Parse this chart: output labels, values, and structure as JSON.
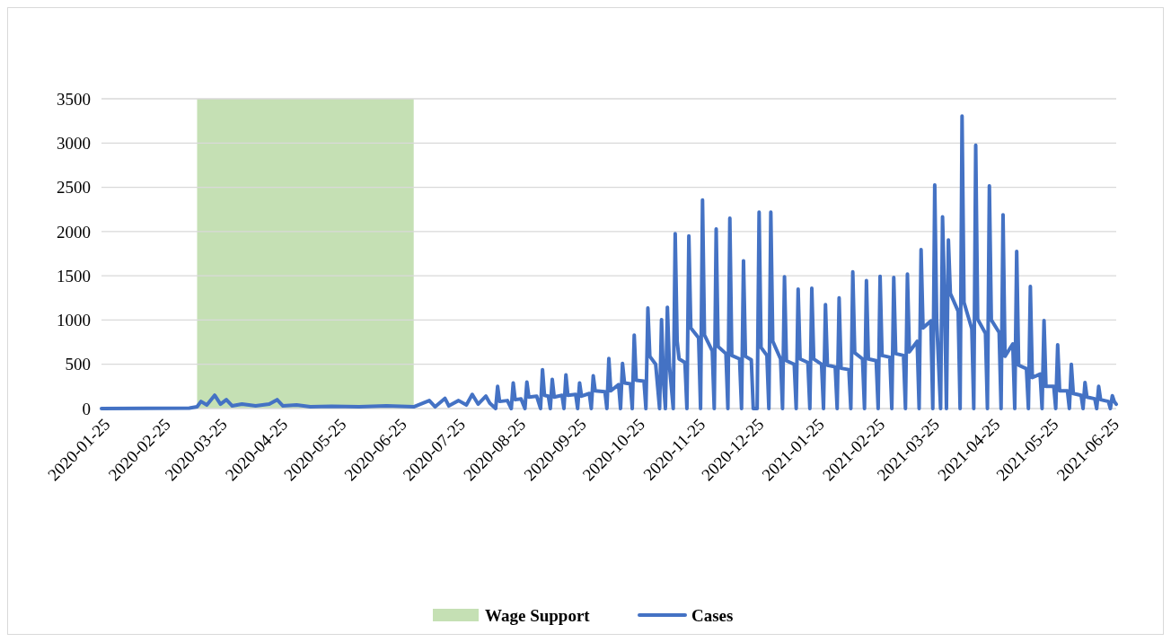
{
  "chart_data": {
    "type": "line",
    "xlim": [
      "2020-01-25",
      "2021-06-28"
    ],
    "xticks": [
      "2020-01-25",
      "2020-02-25",
      "2020-03-25",
      "2020-04-25",
      "2020-05-25",
      "2020-06-25",
      "2020-07-25",
      "2020-08-25",
      "2020-09-25",
      "2020-10-25",
      "2020-11-25",
      "2020-12-25",
      "2021-01-25",
      "2021-02-25",
      "2021-03-25",
      "2021-04-25",
      "2021-05-25",
      "2021-06-25"
    ],
    "ylim": [
      0,
      3500
    ],
    "yticks": [
      0,
      500,
      1000,
      1500,
      2000,
      2500,
      3000,
      3500
    ],
    "grid": "y",
    "legend": "bottom",
    "bands": [
      {
        "axis": "x",
        "from": "2020-03-14",
        "to": "2020-07-03",
        "label": "Wage Support",
        "color": "#c5e0b4"
      }
    ],
    "x": [
      "2020-01-25",
      "2020-03-10",
      "2020-03-14",
      "2020-03-16",
      "2020-03-19",
      "2020-03-23",
      "2020-03-26",
      "2020-03-29",
      "2020-04-01",
      "2020-04-06",
      "2020-04-13",
      "2020-04-20",
      "2020-04-24",
      "2020-04-27",
      "2020-05-04",
      "2020-05-11",
      "2020-05-22",
      "2020-06-05",
      "2020-06-19",
      "2020-07-03",
      "2020-07-11",
      "2020-07-14",
      "2020-07-19",
      "2020-07-21",
      "2020-07-26",
      "2020-07-30",
      "2020-08-02",
      "2020-08-05",
      "2020-08-09",
      "2020-08-11",
      "2020-08-14",
      "2020-08-15",
      "2020-08-16",
      "2020-08-20",
      "2020-08-22",
      "2020-08-23",
      "2020-08-24",
      "2020-08-27",
      "2020-08-29",
      "2020-08-30",
      "2020-08-31",
      "2020-09-04",
      "2020-09-06",
      "2020-09-07",
      "2020-09-08",
      "2020-09-10",
      "2020-09-11",
      "2020-09-12",
      "2020-09-13",
      "2020-09-17",
      "2020-09-18",
      "2020-09-19",
      "2020-09-20",
      "2020-09-24",
      "2020-09-25",
      "2020-09-26",
      "2020-09-27",
      "2020-10-01",
      "2020-10-02",
      "2020-10-03",
      "2020-10-04",
      "2020-10-09",
      "2020-10-10",
      "2020-10-11",
      "2020-10-12",
      "2020-10-16",
      "2020-10-17",
      "2020-10-18",
      "2020-10-19",
      "2020-10-22",
      "2020-10-23",
      "2020-10-24",
      "2020-10-25",
      "2020-10-29",
      "2020-10-30",
      "2020-10-31",
      "2020-11-01",
      "2020-11-04",
      "2020-11-06",
      "2020-11-07",
      "2020-11-08",
      "2020-11-09",
      "2020-11-10",
      "2020-11-11",
      "2020-11-13",
      "2020-11-14",
      "2020-11-15",
      "2020-11-16",
      "2020-11-19",
      "2020-11-20",
      "2020-11-21",
      "2020-11-22",
      "2020-11-26",
      "2020-11-27",
      "2020-11-28",
      "2020-11-29",
      "2020-12-03",
      "2020-12-04",
      "2020-12-05",
      "2020-12-06",
      "2020-12-10",
      "2020-12-11",
      "2020-12-12",
      "2020-12-13",
      "2020-12-17",
      "2020-12-18",
      "2020-12-19",
      "2020-12-20",
      "2020-12-23",
      "2020-12-24",
      "2020-12-25",
      "2020-12-26",
      "2020-12-27",
      "2020-12-28",
      "2020-12-31",
      "2021-01-01",
      "2021-01-02",
      "2021-01-03",
      "2021-01-07",
      "2021-01-08",
      "2021-01-09",
      "2021-01-10",
      "2021-01-14",
      "2021-01-15",
      "2021-01-16",
      "2021-01-17",
      "2021-01-21",
      "2021-01-22",
      "2021-01-23",
      "2021-01-24",
      "2021-01-28",
      "2021-01-29",
      "2021-01-30",
      "2021-01-31",
      "2021-02-04",
      "2021-02-05",
      "2021-02-06",
      "2021-02-07",
      "2021-02-11",
      "2021-02-12",
      "2021-02-13",
      "2021-02-14",
      "2021-02-18",
      "2021-02-19",
      "2021-02-20",
      "2021-02-21",
      "2021-02-25",
      "2021-02-26",
      "2021-02-27",
      "2021-02-28",
      "2021-03-04",
      "2021-03-05",
      "2021-03-06",
      "2021-03-07",
      "2021-03-11",
      "2021-03-12",
      "2021-03-13",
      "2021-03-14",
      "2021-03-18",
      "2021-03-19",
      "2021-03-20",
      "2021-03-21",
      "2021-03-25",
      "2021-03-26",
      "2021-03-27",
      "2021-03-28",
      "2021-03-30",
      "2021-03-31",
      "2021-04-01",
      "2021-04-02",
      "2021-04-03",
      "2021-04-04",
      "2021-04-08",
      "2021-04-09",
      "2021-04-10",
      "2021-04-11",
      "2021-04-15",
      "2021-04-16",
      "2021-04-17",
      "2021-04-18",
      "2021-04-22",
      "2021-04-23",
      "2021-04-24",
      "2021-04-25",
      "2021-04-29",
      "2021-04-30",
      "2021-05-01",
      "2021-05-02",
      "2021-05-06",
      "2021-05-07",
      "2021-05-08",
      "2021-05-09",
      "2021-05-13",
      "2021-05-14",
      "2021-05-15",
      "2021-05-16",
      "2021-05-20",
      "2021-05-21",
      "2021-05-22",
      "2021-05-23",
      "2021-05-27",
      "2021-05-28",
      "2021-05-29",
      "2021-05-30",
      "2021-06-03",
      "2021-06-04",
      "2021-06-05",
      "2021-06-06",
      "2021-06-10",
      "2021-06-11",
      "2021-06-12",
      "2021-06-13",
      "2021-06-17",
      "2021-06-18",
      "2021-06-19",
      "2021-06-20",
      "2021-06-24",
      "2021-06-25",
      "2021-06-26",
      "2021-06-27",
      "2021-06-28"
    ],
    "series": [
      {
        "name": "Cases",
        "color": "#4472c4",
        "values": [
          0,
          5,
          20,
          80,
          40,
          150,
          50,
          100,
          30,
          50,
          30,
          50,
          100,
          30,
          40,
          20,
          25,
          20,
          30,
          20,
          90,
          20,
          115,
          30,
          90,
          40,
          160,
          50,
          140,
          60,
          0,
          250,
          80,
          90,
          0,
          290,
          100,
          110,
          0,
          300,
          130,
          140,
          0,
          440,
          150,
          140,
          0,
          330,
          130,
          150,
          0,
          380,
          150,
          160,
          0,
          290,
          140,
          170,
          0,
          370,
          200,
          190,
          0,
          565,
          200,
          270,
          0,
          510,
          290,
          280,
          0,
          830,
          320,
          310,
          0,
          1135,
          590,
          500,
          0,
          1005,
          300,
          0,
          1145,
          500,
          0,
          1975,
          760,
          560,
          520,
          0,
          1950,
          910,
          800,
          0,
          2355,
          830,
          650,
          0,
          2030,
          700,
          620,
          0,
          2150,
          600,
          560,
          0,
          1670,
          590,
          550,
          0,
          0,
          0,
          2220,
          690,
          600,
          0,
          2220,
          760,
          560,
          0,
          1490,
          540,
          500,
          0,
          1350,
          560,
          520,
          0,
          1360,
          560,
          500,
          0,
          1175,
          490,
          470,
          0,
          1250,
          455,
          440,
          0,
          1545,
          630,
          560,
          0,
          1445,
          560,
          540,
          0,
          1495,
          600,
          580,
          0,
          1480,
          620,
          600,
          0,
          1520,
          640,
          760,
          0,
          1795,
          910,
          990,
          0,
          2525,
          990,
          0,
          2165,
          1300,
          0,
          1905,
          1300,
          1100,
          0,
          3305,
          1200,
          900,
          0,
          2975,
          1010,
          850,
          0,
          2515,
          1000,
          860,
          0,
          2190,
          590,
          730,
          0,
          1775,
          490,
          450,
          0,
          1380,
          350,
          390,
          0,
          995,
          250,
          250,
          0,
          720,
          200,
          200,
          0,
          500,
          170,
          150,
          0,
          295,
          130,
          110,
          0,
          250,
          100,
          80,
          0,
          145,
          80,
          50
        ]
      }
    ]
  }
}
